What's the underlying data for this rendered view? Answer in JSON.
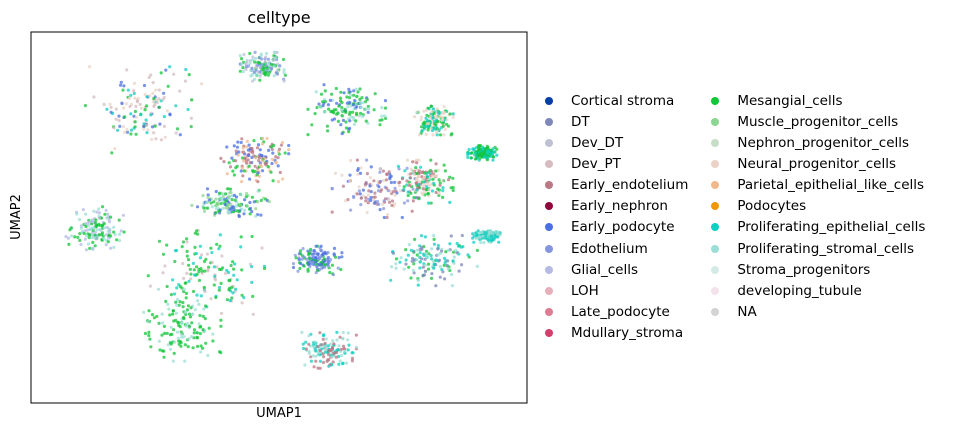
{
  "chart_data": {
    "type": "scatter",
    "title": "celltype",
    "xlabel": "UMAP1",
    "ylabel": "UMAP2",
    "grid": false,
    "legend_placement": "right",
    "categories": [
      {
        "name": "Cortical stroma",
        "color": "#023fa5"
      },
      {
        "name": "DT",
        "color": "#7d87b9"
      },
      {
        "name": "Dev_DT",
        "color": "#bec1d4"
      },
      {
        "name": "Dev_PT",
        "color": "#d6bcc0"
      },
      {
        "name": "Early_endotelium",
        "color": "#bb7784"
      },
      {
        "name": "Early_nephron",
        "color": "#8e063b"
      },
      {
        "name": "Early_podocyte",
        "color": "#4a6fe3"
      },
      {
        "name": "Edothelium",
        "color": "#8595e1"
      },
      {
        "name": "Glial_cells",
        "color": "#b5bbe3"
      },
      {
        "name": "LOH",
        "color": "#e6afb9"
      },
      {
        "name": "Late_podocyte",
        "color": "#e07b91"
      },
      {
        "name": "Mdullary_stroma",
        "color": "#d33f6a"
      },
      {
        "name": "Mesangial_cells",
        "color": "#11c638"
      },
      {
        "name": "Muscle_progenitor_cells",
        "color": "#8dd593"
      },
      {
        "name": "Nephron_progenitor_cells",
        "color": "#c6dec7"
      },
      {
        "name": "Neural_progenitor_cells",
        "color": "#ead3c6"
      },
      {
        "name": "Parietal_epithelial_like_cells",
        "color": "#f0b98d"
      },
      {
        "name": "Podocytes",
        "color": "#ef9708"
      },
      {
        "name": "Proliferating_epithelial_cells",
        "color": "#0fcfc0"
      },
      {
        "name": "Proliferating_stromal_cells",
        "color": "#9cded6"
      },
      {
        "name": "Stroma_progenitors",
        "color": "#d5eae7"
      },
      {
        "name": "developing_tubule",
        "color": "#f3e1eb"
      },
      {
        "name": "NA",
        "color": "#d3d3d3"
      }
    ],
    "clusters": [
      {
        "x": 0.22,
        "y": 0.8,
        "rx": 0.12,
        "ry": 0.12,
        "mix": [
          12,
          6,
          18,
          3,
          15
        ]
      },
      {
        "x": 0.47,
        "y": 0.92,
        "rx": 0.05,
        "ry": 0.04,
        "mix": [
          2,
          7,
          19,
          12
        ]
      },
      {
        "x": 0.64,
        "y": 0.8,
        "rx": 0.08,
        "ry": 0.07,
        "mix": [
          12,
          12,
          6,
          19
        ]
      },
      {
        "x": 0.82,
        "y": 0.77,
        "rx": 0.04,
        "ry": 0.04,
        "mix": [
          12,
          18,
          15
        ]
      },
      {
        "x": 0.45,
        "y": 0.66,
        "rx": 0.07,
        "ry": 0.06,
        "mix": [
          12,
          4,
          16,
          6
        ]
      },
      {
        "x": 0.71,
        "y": 0.58,
        "rx": 0.1,
        "ry": 0.08,
        "mix": [
          6,
          7,
          4,
          15
        ]
      },
      {
        "x": 0.8,
        "y": 0.6,
        "rx": 0.06,
        "ry": 0.06,
        "mix": [
          4,
          15,
          12,
          18
        ]
      },
      {
        "x": 0.12,
        "y": 0.47,
        "rx": 0.06,
        "ry": 0.06,
        "mix": [
          12,
          8,
          19
        ]
      },
      {
        "x": 0.4,
        "y": 0.54,
        "rx": 0.08,
        "ry": 0.04,
        "mix": [
          19,
          13,
          6,
          12
        ]
      },
      {
        "x": 0.35,
        "y": 0.35,
        "rx": 0.12,
        "ry": 0.12,
        "mix": [
          12,
          12,
          3,
          18
        ]
      },
      {
        "x": 0.3,
        "y": 0.2,
        "rx": 0.08,
        "ry": 0.1,
        "mix": [
          12,
          12,
          19
        ]
      },
      {
        "x": 0.82,
        "y": 0.38,
        "rx": 0.09,
        "ry": 0.07,
        "mix": [
          18,
          19,
          12,
          1
        ]
      },
      {
        "x": 0.6,
        "y": 0.13,
        "rx": 0.06,
        "ry": 0.05,
        "mix": [
          4,
          18,
          19
        ]
      },
      {
        "x": 0.58,
        "y": 0.38,
        "rx": 0.05,
        "ry": 0.04,
        "mix": [
          12,
          7,
          6
        ]
      },
      {
        "x": 0.93,
        "y": 0.45,
        "rx": 0.03,
        "ry": 0.02,
        "mix": [
          18,
          19
        ]
      },
      {
        "x": 0.92,
        "y": 0.68,
        "rx": 0.03,
        "ry": 0.02,
        "mix": [
          12,
          18
        ]
      }
    ]
  }
}
